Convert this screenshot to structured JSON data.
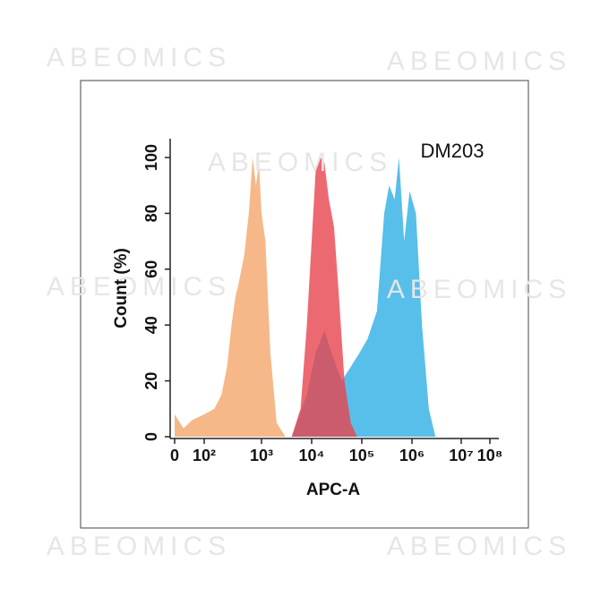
{
  "chart_data": {
    "type": "area",
    "annotation": "DM203",
    "xlabel": "APC-A",
    "ylabel": "Count (%)",
    "watermark": "ABEOMICS",
    "xscale": "biexponential",
    "xlim": [
      0,
      100000000
    ],
    "xticks": [
      0,
      {
        "value": 100,
        "label": "10²"
      },
      {
        "value": 1000,
        "label": "10³"
      },
      {
        "value": 10000,
        "label": "10⁴"
      },
      {
        "value": 100000,
        "label": "10⁵"
      },
      {
        "value": 1000000,
        "label": "10⁶"
      },
      {
        "value": 10000000,
        "label": "10⁷"
      },
      {
        "value": 100000000,
        "label": "10⁸"
      }
    ],
    "ylim": [
      0,
      110
    ],
    "yticks": [
      0,
      20,
      40,
      60,
      80,
      100
    ],
    "series": [
      {
        "color": "#f5b07c",
        "x": [
          0,
          30,
          60,
          100,
          150,
          200,
          250,
          300,
          350,
          400,
          500,
          600,
          700,
          800,
          900,
          1000,
          1200,
          1500,
          2000,
          3000
        ],
        "values": [
          8,
          3,
          6,
          8,
          10,
          15,
          25,
          40,
          50,
          55,
          65,
          80,
          100,
          90,
          98,
          80,
          70,
          30,
          5,
          0
        ]
      },
      {
        "color": "#45b8e8",
        "x": [
          4000,
          8000,
          12000,
          18000,
          25000,
          40000,
          60000,
          90000,
          130000,
          200000,
          280000,
          350000,
          450000,
          550000,
          700000,
          900000,
          1200000,
          1600000,
          2200000,
          3000000
        ],
        "values": [
          0,
          15,
          30,
          38,
          30,
          20,
          25,
          30,
          35,
          45,
          80,
          90,
          85,
          100,
          70,
          88,
          80,
          40,
          10,
          0
        ]
      },
      {
        "color": "#e8444e",
        "x": [
          4000,
          6000,
          8000,
          10000,
          12000,
          15000,
          18000,
          22000,
          28000,
          35000,
          45000,
          60000,
          80000
        ],
        "values": [
          0,
          10,
          40,
          70,
          95,
          100,
          98,
          85,
          75,
          50,
          20,
          5,
          0
        ]
      }
    ]
  }
}
